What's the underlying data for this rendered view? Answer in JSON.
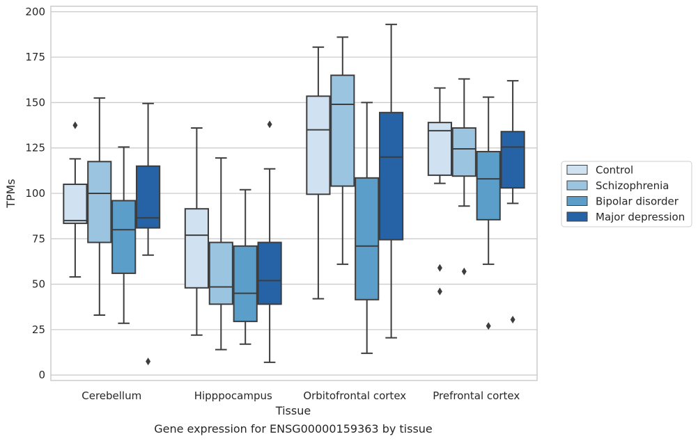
{
  "chart_data": {
    "type": "boxplot",
    "xlabel": "Tissue",
    "ylabel": "TPMs",
    "caption": "Gene expression for ENSG00000159363 by tissue",
    "ylim": [
      -3,
      203
    ],
    "yticks": [
      0,
      25,
      50,
      75,
      100,
      125,
      150,
      175,
      200
    ],
    "grid": "horizontal",
    "legend_position": "right",
    "categories": [
      "Cerebellum",
      "Hipppocampus",
      "Orbitofrontal cortex",
      "Prefrontal cortex"
    ],
    "series": [
      {
        "name": "Control",
        "color": "#d0e2f2",
        "boxes": [
          {
            "whislo": 54,
            "q1": 83.5,
            "med": 85,
            "q3": 105,
            "whishi": 119,
            "fliers": [
              137.5
            ]
          },
          {
            "whislo": 22,
            "q1": 48,
            "med": 77,
            "q3": 91.5,
            "whishi": 136,
            "fliers": []
          },
          {
            "whislo": 42,
            "q1": 99.5,
            "med": 135,
            "q3": 153.5,
            "whishi": 180.5,
            "fliers": []
          },
          {
            "whislo": 105.5,
            "q1": 110,
            "med": 134.5,
            "q3": 139,
            "whishi": 158,
            "fliers": [
              59,
              46
            ]
          }
        ]
      },
      {
        "name": "Schizophrenia",
        "color": "#9ac4e0",
        "boxes": [
          {
            "whislo": 33,
            "q1": 73,
            "med": 100,
            "q3": 117.5,
            "whishi": 152.5,
            "fliers": []
          },
          {
            "whislo": 14,
            "q1": 39,
            "med": 48.5,
            "q3": 73,
            "whishi": 119.5,
            "fliers": []
          },
          {
            "whislo": 61,
            "q1": 104,
            "med": 149,
            "q3": 165,
            "whishi": 186,
            "fliers": []
          },
          {
            "whislo": 93,
            "q1": 109.5,
            "med": 124.5,
            "q3": 136,
            "whishi": 163,
            "fliers": [
              57
            ]
          }
        ]
      },
      {
        "name": "Bipolar disorder",
        "color": "#5a9ec9",
        "boxes": [
          {
            "whislo": 28.5,
            "q1": 56,
            "med": 80,
            "q3": 96,
            "whishi": 125.5,
            "fliers": []
          },
          {
            "whislo": 17,
            "q1": 29.5,
            "med": 45,
            "q3": 71,
            "whishi": 102,
            "fliers": []
          },
          {
            "whislo": 12,
            "q1": 41.5,
            "med": 71,
            "q3": 108.5,
            "whishi": 150,
            "fliers": []
          },
          {
            "whislo": 61,
            "q1": 85.5,
            "med": 108,
            "q3": 123,
            "whishi": 153,
            "fliers": [
              27
            ]
          }
        ]
      },
      {
        "name": "Major depression",
        "color": "#2563a6",
        "boxes": [
          {
            "whislo": 66,
            "q1": 81,
            "med": 86.5,
            "q3": 115,
            "whishi": 149.5,
            "fliers": [
              7.5
            ]
          },
          {
            "whislo": 7,
            "q1": 39,
            "med": 52,
            "q3": 73,
            "whishi": 113.5,
            "fliers": [
              138
            ]
          },
          {
            "whislo": 20.5,
            "q1": 74.5,
            "med": 120,
            "q3": 144.5,
            "whishi": 193,
            "fliers": []
          },
          {
            "whislo": 94.5,
            "q1": 103,
            "med": 125.5,
            "q3": 134,
            "whishi": 162,
            "fliers": [
              30.5
            ]
          }
        ]
      }
    ]
  }
}
